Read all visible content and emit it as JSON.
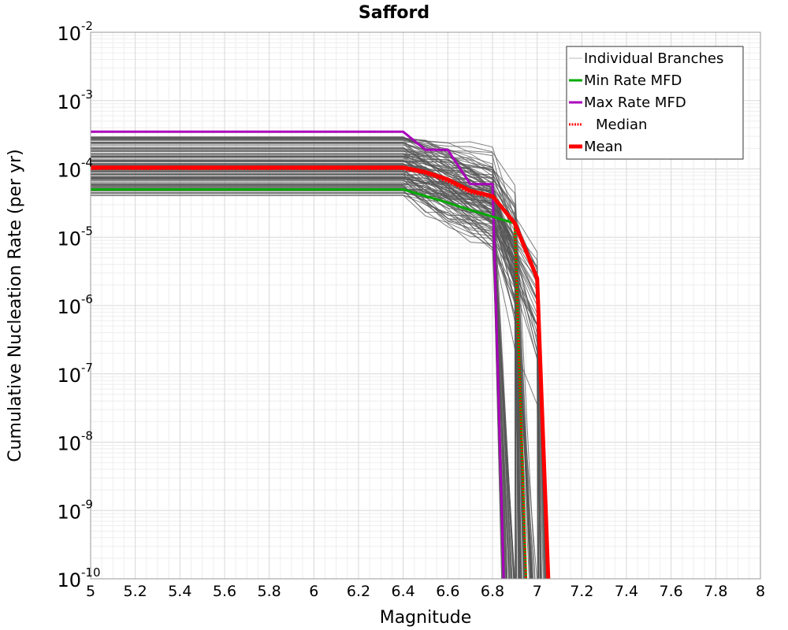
{
  "chart_data": {
    "type": "line",
    "title": "Safford",
    "xlabel": "Magnitude",
    "ylabel": "Cumulative Nucleation Rate (per yr)",
    "xlim": [
      5,
      8
    ],
    "ylim_log10": [
      -10,
      -2
    ],
    "y_scale": "log",
    "grid": true,
    "legend_position": "top-right",
    "x_ticks": [
      "5",
      "5.2",
      "5.4",
      "5.6",
      "5.8",
      "6",
      "6.2",
      "6.4",
      "6.6",
      "6.8",
      "7",
      "7.2",
      "7.4",
      "7.6",
      "7.8",
      "8"
    ],
    "y_ticks": [
      {
        "base": "10",
        "exp": "-2"
      },
      {
        "base": "10",
        "exp": "-3"
      },
      {
        "base": "10",
        "exp": "-4"
      },
      {
        "base": "10",
        "exp": "-5"
      },
      {
        "base": "10",
        "exp": "-6"
      },
      {
        "base": "10",
        "exp": "-7"
      },
      {
        "base": "10",
        "exp": "-8"
      },
      {
        "base": "10",
        "exp": "-9"
      },
      {
        "base": "10",
        "exp": "-10"
      }
    ],
    "legend": [
      {
        "label": "Individual Branches",
        "color": "#bbbbbb",
        "style": "solid",
        "width": 1
      },
      {
        "label": "Min Rate MFD",
        "color": "#00aa00",
        "style": "solid",
        "width": 3
      },
      {
        "label": "Max Rate MFD",
        "color": "#aa00bb",
        "style": "solid",
        "width": 3
      },
      {
        "label": "Median",
        "color": "#ff0000",
        "style": "dotted",
        "width": 3
      },
      {
        "label": "Mean",
        "color": "#ff0000",
        "style": "solid",
        "width": 5
      }
    ],
    "branches": {
      "count": 120,
      "color": "#555555",
      "rate_range": [
        4e-05,
        0.0003
      ],
      "x_knees": [
        6.4,
        6.5,
        6.6,
        6.7,
        6.8,
        6.9,
        7.0
      ],
      "final_x_range": [
        6.84,
        7.05
      ]
    },
    "series": [
      {
        "name": "Max Rate MFD",
        "color": "#aa00bb",
        "width": 3,
        "x": [
          5.0,
          6.4,
          6.5,
          6.6,
          6.7,
          6.8,
          6.85
        ],
        "y": [
          0.00035,
          0.00035,
          0.00019,
          0.00019,
          6e-05,
          6e-05,
          1e-10
        ]
      },
      {
        "name": "Min Rate MFD",
        "color": "#00aa00",
        "width": 3,
        "x": [
          5.0,
          6.4,
          6.5,
          6.6,
          6.7,
          6.8,
          6.9,
          6.95
        ],
        "y": [
          5e-05,
          5e-05,
          4e-05,
          3.2e-05,
          2.5e-05,
          2e-05,
          1.6e-05,
          1e-10
        ]
      },
      {
        "name": "Median",
        "color": "#ff0000",
        "width": 3,
        "dash": "2,2",
        "x": [
          5.0,
          6.4,
          6.5,
          6.6,
          6.7,
          6.8,
          6.9,
          6.95
        ],
        "y": [
          0.0001,
          0.0001,
          8.5e-05,
          6.5e-05,
          4.5e-05,
          3.8e-05,
          1.6e-05,
          1e-10
        ]
      },
      {
        "name": "Mean",
        "color": "#ff0000",
        "width": 5,
        "x": [
          5.0,
          6.4,
          6.5,
          6.6,
          6.7,
          6.8,
          6.9,
          7.0,
          7.05
        ],
        "y": [
          0.000105,
          0.000105,
          9e-05,
          7e-05,
          4.8e-05,
          4e-05,
          1.6e-05,
          2.5e-06,
          1e-10
        ]
      }
    ]
  }
}
